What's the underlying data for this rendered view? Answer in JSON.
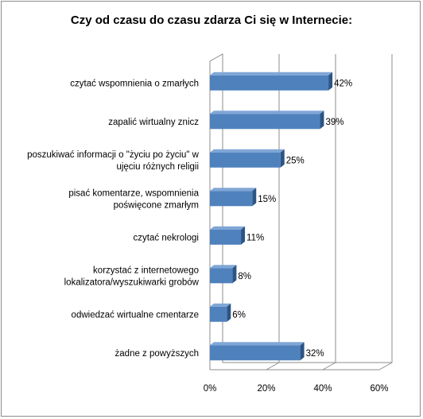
{
  "chart_data": {
    "type": "bar",
    "orientation": "horizontal",
    "style": "3d",
    "title": "Czy od czasu do czasu zdarza Ci się w Internecie:",
    "categories": [
      [
        "czytać wspomnienia o zmarłych"
      ],
      [
        "zapalić wirtualny znicz"
      ],
      [
        "poszukiwać informacji o \"życiu po życiu\" w",
        "ujęciu różnych religii"
      ],
      [
        "pisać komentarze, wspomnienia",
        "poświęcone zmarłym"
      ],
      [
        "czytać nekrologi"
      ],
      [
        "korzystać z internetowego",
        "lokalizatora/wyszukiwarki grobów"
      ],
      [
        "odwiedzać wirtualne cmentarze"
      ],
      [
        "żadne z powyższych"
      ]
    ],
    "values": [
      42,
      39,
      25,
      15,
      11,
      8,
      6,
      32
    ],
    "value_labels": [
      "42%",
      "39%",
      "25%",
      "15%",
      "11%",
      "8%",
      "6%",
      "32%"
    ],
    "xlim": [
      0,
      60
    ],
    "x_ticks": [
      "0%",
      "20%",
      "40%",
      "60%"
    ],
    "grid": true,
    "colors": {
      "bar_front": "#4f81bd",
      "bar_top": "#7fa6d6",
      "bar_side": "#2c5484",
      "grid": "#8c8c8c"
    }
  }
}
